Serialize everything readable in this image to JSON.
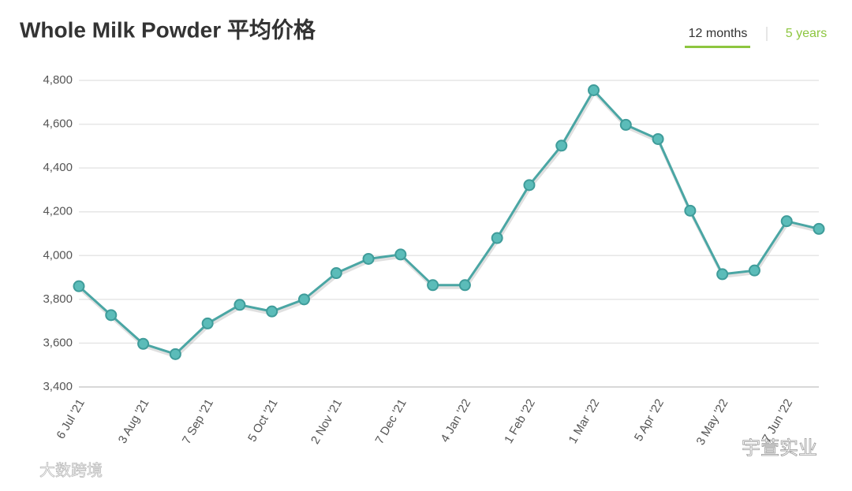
{
  "chart_data": {
    "type": "line",
    "title": "Whole Milk Powder 平均价格",
    "tabs": [
      "12 months",
      "5 years"
    ],
    "categories": [
      "6 Jul '21",
      null,
      "3 Aug '21",
      null,
      "7 Sep '21",
      null,
      "5 Oct '21",
      null,
      "2 Nov '21",
      null,
      "7 Dec '21",
      null,
      "4 Jan '22",
      null,
      "1 Feb '22",
      null,
      "1 Mar '22",
      null,
      "5 Apr '22",
      null,
      "3 May '22",
      null,
      "7 Jun '22",
      null
    ],
    "values": [
      3860,
      3728,
      3597,
      3550,
      3690,
      3775,
      3745,
      3800,
      3920,
      3985,
      4005,
      3865,
      3865,
      4080,
      4322,
      4502,
      4755,
      4597,
      4532,
      4205,
      3915,
      3932,
      4157,
      4122
    ],
    "color": "#4aa6a4",
    "ylim": [
      3400,
      4800
    ],
    "yticks": [
      {
        "value": 3400,
        "label": "3,400"
      },
      {
        "value": 3600,
        "label": "3,600"
      },
      {
        "value": 3800,
        "label": "3,800"
      },
      {
        "value": 4000,
        "label": "4,000"
      },
      {
        "value": 4200,
        "label": "4,200"
      },
      {
        "value": 4400,
        "label": "4,400"
      },
      {
        "value": 4600,
        "label": "4,600"
      },
      {
        "value": 4800,
        "label": "4,800"
      }
    ],
    "grid": true,
    "watermarks": [
      "大数跨境",
      "宇萱实业"
    ]
  }
}
